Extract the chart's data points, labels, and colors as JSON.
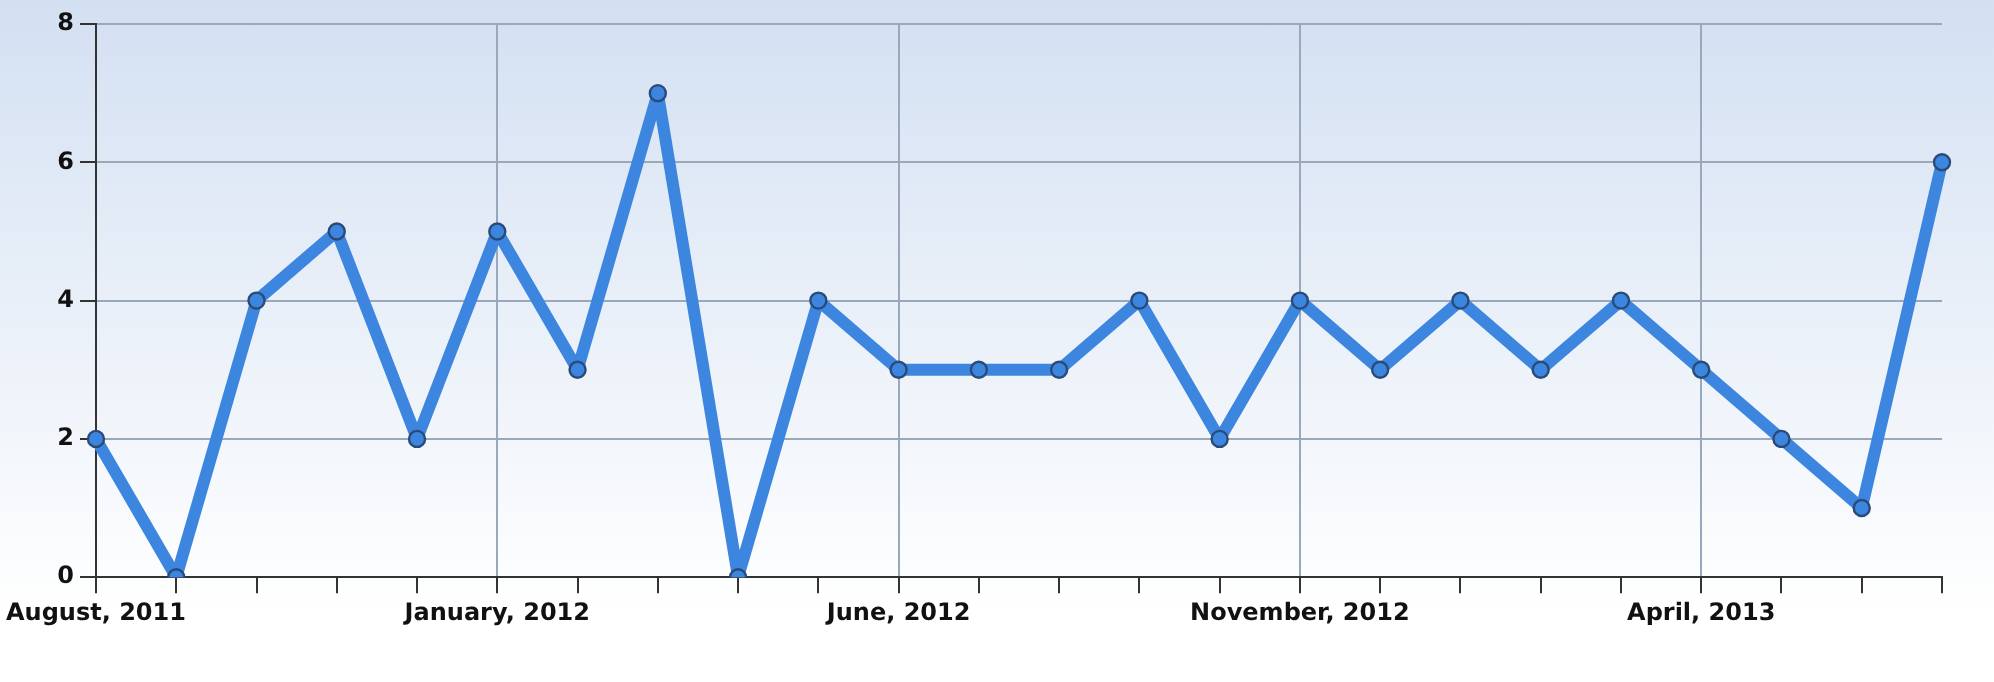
{
  "chart_data": {
    "type": "line",
    "categories": [
      "August, 2011",
      null,
      null,
      null,
      null,
      "January, 2012",
      null,
      null,
      null,
      null,
      "June, 2012",
      null,
      null,
      null,
      null,
      "November, 2012",
      null,
      null,
      null,
      null,
      "April, 2013",
      null,
      null,
      null
    ],
    "series": [
      {
        "color": "#3d86e0",
        "values": [
          2,
          0,
          4,
          5,
          2,
          5,
          3,
          7,
          0,
          4,
          3,
          3,
          3,
          4,
          2,
          4,
          3,
          4,
          3,
          4,
          3,
          2,
          1,
          6
        ]
      }
    ],
    "ylim": [
      0,
      8
    ],
    "yticks": [
      0,
      2,
      4,
      6,
      8
    ],
    "grid": true,
    "marker": "circle",
    "line_style": "solid",
    "legend": false
  }
}
